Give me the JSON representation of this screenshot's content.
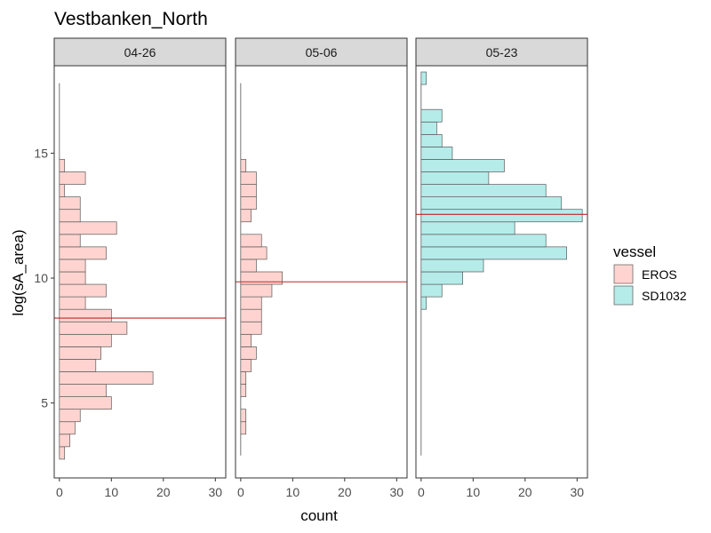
{
  "chart_data": {
    "type": "bar",
    "orientation": "horizontal-histogram",
    "title": "Vestbanken_North",
    "xlabel": "count",
    "ylabel": "log(sA_area)",
    "xlim": [
      -1,
      32
    ],
    "ylim": [
      2.0,
      18.5
    ],
    "x_ticks": [
      0,
      10,
      20,
      30
    ],
    "y_ticks": [
      5,
      10,
      15
    ],
    "bin_width": 0.5,
    "bin_start": 2.75,
    "grid": false,
    "legend": {
      "title": "vessel",
      "position": "right",
      "entries": [
        {
          "name": "EROS",
          "color": "#ffd4d0"
        },
        {
          "name": "SD1032",
          "color": "#b5ecea"
        }
      ]
    },
    "panels": [
      {
        "label": "04-26",
        "vessel": "EROS",
        "color": "#ffd4d0",
        "mean_line": 8.4,
        "counts": [
          1,
          2,
          3,
          4,
          10,
          9,
          18,
          7,
          8,
          10,
          13,
          10,
          5,
          9,
          5,
          5,
          9,
          4,
          11,
          4,
          4,
          1,
          5,
          1,
          0,
          0,
          0,
          0,
          0,
          0,
          0
        ]
      },
      {
        "label": "05-06",
        "vessel": "EROS",
        "color": "#ffd4d0",
        "mean_line": 9.85,
        "counts": [
          0,
          0,
          1,
          1,
          0,
          1,
          1,
          2,
          3,
          2,
          4,
          4,
          4,
          6,
          8,
          3,
          5,
          4,
          0,
          2,
          3,
          3,
          3,
          1,
          0,
          0,
          0,
          0,
          0,
          0,
          0
        ]
      },
      {
        "label": "05-23",
        "vessel": "SD1032",
        "color": "#b5ecea",
        "mean_line": 12.55,
        "counts": [
          0,
          0,
          0,
          0,
          0,
          0,
          0,
          0,
          0,
          0,
          0,
          0,
          1,
          4,
          8,
          12,
          28,
          24,
          18,
          31,
          27,
          24,
          13,
          16,
          6,
          4,
          3,
          4,
          0,
          0,
          1
        ]
      }
    ]
  }
}
